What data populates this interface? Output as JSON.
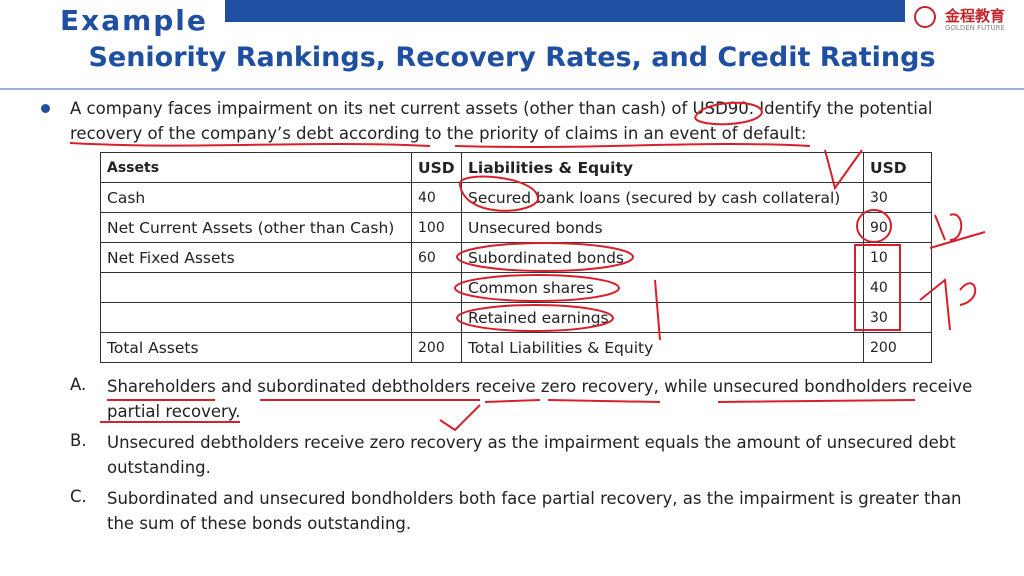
{
  "header": {
    "label": "Example",
    "title": "Seniority Rankings, Recovery Rates, and Credit Ratings",
    "logo": "金程教育",
    "logo_sub": "GOLDEN FUTURE"
  },
  "question": "A company faces impairment on its net current assets (other than cash) of USD90. Identify the potential recovery of the company’s debt according to the priority of claims in an event of default:",
  "table": {
    "columns": [
      "Assets",
      "USD",
      "Liabilities & Equity",
      "USD"
    ],
    "rows": [
      [
        "Cash",
        40,
        "Secured bank loans (secured by cash collateral)",
        30
      ],
      [
        "Net Current Assets (other than Cash)",
        100,
        "Unsecured bonds",
        90
      ],
      [
        "Net Fixed Assets",
        60,
        "Subordinated bonds",
        10
      ],
      [
        null,
        null,
        "Common shares",
        40
      ],
      [
        null,
        null,
        "Retained earnings",
        30
      ],
      [
        "Total Assets",
        200,
        "Total Liabilities & Equity",
        200
      ]
    ]
  },
  "options": [
    {
      "letter": "A.",
      "text": "Shareholders and subordinated debtholders receive zero recovery, while unsecured bondholders receive partial recovery."
    },
    {
      "letter": "B.",
      "text": "Unsecured debtholders receive zero recovery as the impairment equals the amount of unsecured debt outstanding."
    },
    {
      "letter": "C.",
      "text": "Subordinated and unsecured bondholders both face partial recovery, as the impairment is greater than the sum of these bonds outstanding."
    }
  ]
}
